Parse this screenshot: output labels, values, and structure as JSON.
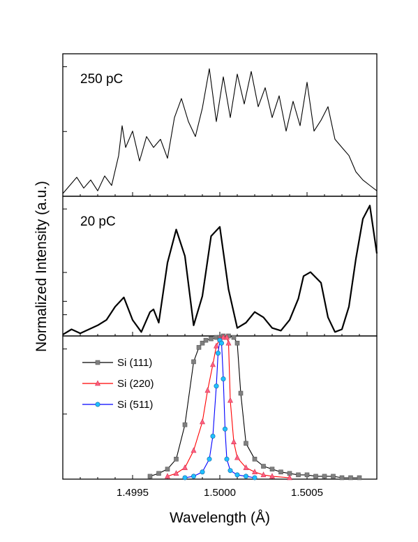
{
  "chart_data": [
    {
      "type": "line",
      "panel": "top",
      "annotation": "250 pC",
      "xlim": [
        1.4991,
        1.5009
      ],
      "ylim": [
        0,
        1.05
      ],
      "series": [
        {
          "color": "#000000",
          "x": [
            1.4991,
            1.49914,
            1.49918,
            1.49922,
            1.49926,
            1.4993,
            1.49934,
            1.49938,
            1.49942,
            1.49944,
            1.49946,
            1.4995,
            1.49954,
            1.49958,
            1.49962,
            1.49966,
            1.4997,
            1.49974,
            1.49978,
            1.49982,
            1.49986,
            1.4999,
            1.49994,
            1.49998,
            1.50002,
            1.50006,
            1.5001,
            1.50014,
            1.50018,
            1.50022,
            1.50026,
            1.5003,
            1.50034,
            1.50038,
            1.50042,
            1.50046,
            1.5005,
            1.50054,
            1.50058,
            1.50062,
            1.50066,
            1.5007,
            1.50074,
            1.50078,
            1.50082,
            1.50086,
            1.5009
          ],
          "y": [
            0.02,
            0.08,
            0.14,
            0.06,
            0.12,
            0.04,
            0.15,
            0.08,
            0.3,
            0.52,
            0.36,
            0.48,
            0.26,
            0.44,
            0.36,
            0.42,
            0.28,
            0.58,
            0.72,
            0.55,
            0.44,
            0.65,
            0.94,
            0.55,
            0.88,
            0.58,
            0.9,
            0.68,
            0.92,
            0.66,
            0.8,
            0.58,
            0.74,
            0.48,
            0.7,
            0.52,
            0.84,
            0.48,
            0.56,
            0.66,
            0.42,
            0.36,
            0.3,
            0.18,
            0.12,
            0.08,
            0.04
          ]
        }
      ]
    },
    {
      "type": "line",
      "panel": "middle",
      "annotation": "20 pC",
      "xlim": [
        1.4991,
        1.5009
      ],
      "ylim": [
        0,
        1.05
      ],
      "series": [
        {
          "color": "#000000",
          "x": [
            1.4991,
            1.49915,
            1.4992,
            1.49925,
            1.4993,
            1.49935,
            1.4994,
            1.49945,
            1.4995,
            1.49955,
            1.4996,
            1.49962,
            1.49965,
            1.4997,
            1.49975,
            1.4998,
            1.49985,
            1.4999,
            1.49995,
            1.5,
            1.50005,
            1.5001,
            1.50015,
            1.5002,
            1.50025,
            1.5003,
            1.50035,
            1.5004,
            1.50045,
            1.50048,
            1.50052,
            1.50058,
            1.50062,
            1.50066,
            1.5007,
            1.50074,
            1.50078,
            1.50082,
            1.50086,
            1.5009
          ],
          "y": [
            0.01,
            0.05,
            0.02,
            0.05,
            0.08,
            0.12,
            0.22,
            0.29,
            0.12,
            0.03,
            0.18,
            0.2,
            0.1,
            0.55,
            0.8,
            0.6,
            0.08,
            0.3,
            0.75,
            0.82,
            0.35,
            0.06,
            0.1,
            0.18,
            0.14,
            0.06,
            0.04,
            0.12,
            0.28,
            0.45,
            0.48,
            0.4,
            0.14,
            0.03,
            0.05,
            0.22,
            0.58,
            0.88,
            0.98,
            0.62
          ]
        }
      ]
    },
    {
      "type": "line",
      "panel": "bottom",
      "xlim": [
        1.4991,
        1.5009
      ],
      "ylim": [
        0,
        1.0
      ],
      "xticks": [
        "1.4995",
        "1.5000",
        "1.5005"
      ],
      "xtick_values": [
        1.4995,
        1.5,
        1.5005
      ],
      "xlabel": "Wavelength (Å)",
      "ylabel": "Normalized Intensity (a.u.)",
      "legend_position": "top-left",
      "series": [
        {
          "name": "Si (111)",
          "color": "#000000",
          "marker_color": "#808080",
          "marker": "square",
          "x": [
            1.4996,
            1.49965,
            1.4997,
            1.49975,
            1.4998,
            1.49985,
            1.49988,
            1.4999,
            1.49992,
            1.49995,
            1.49998,
            1.5,
            1.50002,
            1.50005,
            1.50008,
            1.5001,
            1.50012,
            1.50015,
            1.5002,
            1.50025,
            1.5003,
            1.50035,
            1.5004,
            1.50045,
            1.5005,
            1.50055,
            1.5006,
            1.50065,
            1.5007,
            1.50075,
            1.5008
          ],
          "y": [
            0.02,
            0.04,
            0.07,
            0.14,
            0.38,
            0.82,
            0.92,
            0.95,
            0.97,
            0.98,
            0.99,
            0.99,
            1.0,
            1.0,
            0.99,
            0.95,
            0.6,
            0.25,
            0.14,
            0.09,
            0.07,
            0.05,
            0.04,
            0.03,
            0.03,
            0.02,
            0.02,
            0.02,
            0.01,
            0.01,
            0.01
          ]
        },
        {
          "name": "Si (220)",
          "color": "#ff0000",
          "marker_color": "#ff6080",
          "marker": "triangle",
          "x": [
            1.4997,
            1.49975,
            1.4998,
            1.49985,
            1.4999,
            1.49993,
            1.49996,
            1.49998,
            1.5,
            1.50002,
            1.50004,
            1.50005,
            1.50006,
            1.50008,
            1.5001,
            1.50015,
            1.5002,
            1.50025,
            1.5003,
            1.5004
          ],
          "y": [
            0.02,
            0.04,
            0.08,
            0.2,
            0.4,
            0.62,
            0.8,
            0.93,
            0.98,
            0.99,
            0.99,
            0.95,
            0.55,
            0.26,
            0.15,
            0.08,
            0.05,
            0.03,
            0.02,
            0.01
          ]
        },
        {
          "name": "Si (511)",
          "color": "#0000ff",
          "marker_color": "#20c0ff",
          "marker": "circle",
          "x": [
            1.4998,
            1.49985,
            1.4999,
            1.49994,
            1.49996,
            1.49998,
            1.49999,
            1.5,
            1.50001,
            1.50002,
            1.50003,
            1.50004,
            1.50006,
            1.5001,
            1.50015,
            1.5002
          ],
          "y": [
            0.01,
            0.02,
            0.05,
            0.14,
            0.3,
            0.65,
            0.88,
            0.97,
            0.95,
            0.7,
            0.35,
            0.14,
            0.06,
            0.03,
            0.02,
            0.01
          ]
        }
      ]
    }
  ]
}
